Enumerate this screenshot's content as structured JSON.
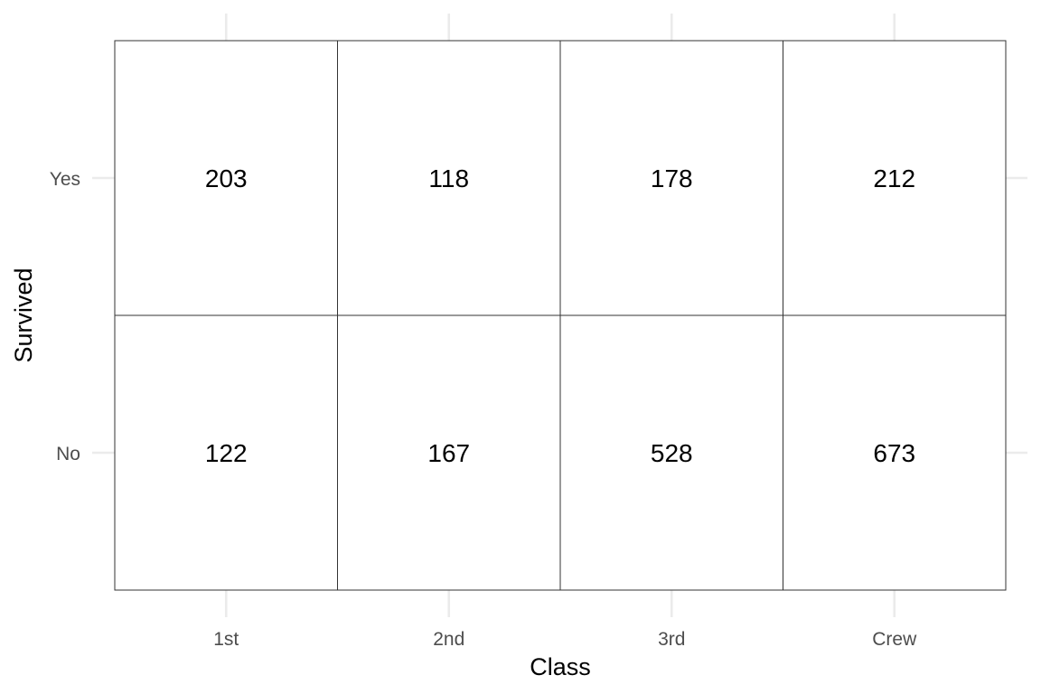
{
  "chart_data": {
    "type": "heatmap",
    "title": "",
    "xlabel": "Class",
    "ylabel": "Survived",
    "x_categories": [
      "1st",
      "2nd",
      "3rd",
      "Crew"
    ],
    "y_categories": [
      "Yes",
      "No"
    ],
    "values": [
      [
        203,
        118,
        178,
        212
      ],
      [
        122,
        167,
        528,
        673
      ]
    ],
    "grid": true,
    "legend": "none",
    "colors": {
      "cell_fill": "#ffffff",
      "cell_border": "#333333",
      "gridline": "#ebebeb",
      "tick_text": "#4d4d4d",
      "label_text": "#000000"
    }
  }
}
